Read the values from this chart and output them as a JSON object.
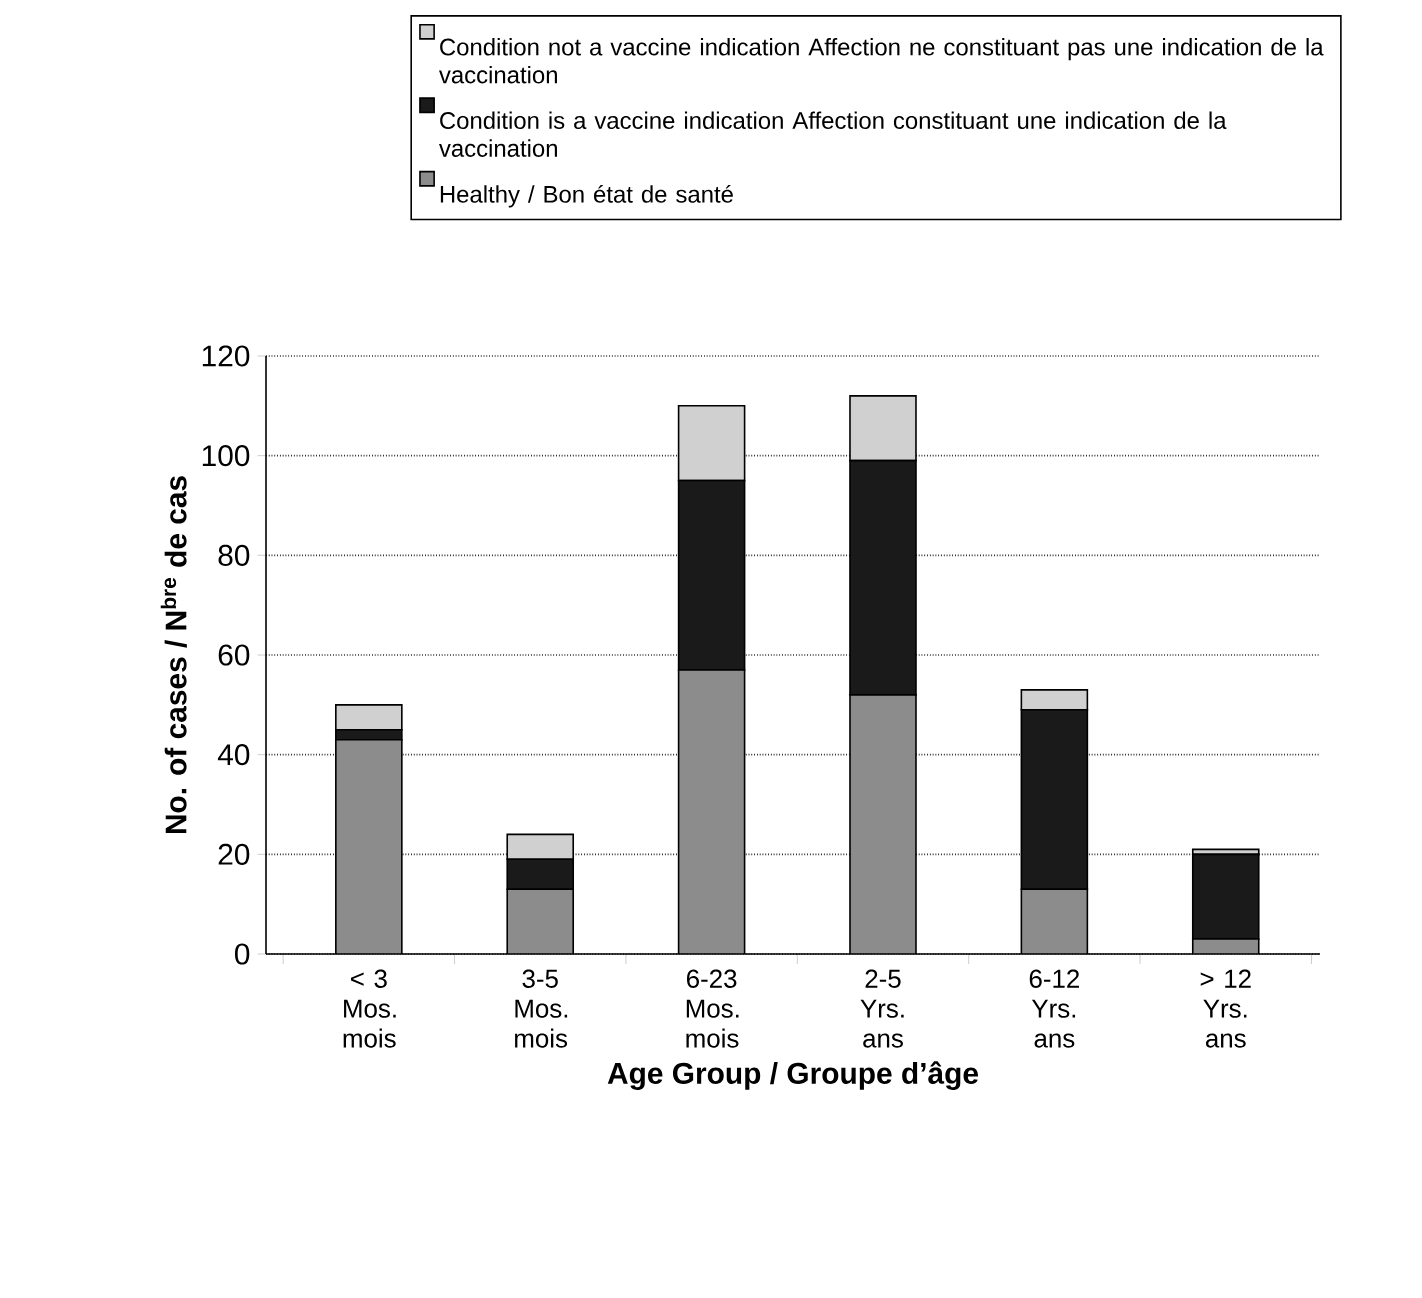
{
  "chart_data": {
    "type": "bar",
    "stacked": true,
    "categories": [
      "< 3 Mos. mois",
      "3-5 Mos. mois",
      "6-23 Mos. mois",
      "2-5 Yrs. ans",
      "6-12 Yrs. ans",
      "> 12 Yrs. ans"
    ],
    "series": [
      {
        "name": "Healthy / Bon état de santé",
        "color": "#8c8c8c",
        "values": [
          43,
          13,
          57,
          52,
          13,
          3
        ]
      },
      {
        "name": "Condition is a vaccine indication Affection constituant une indication de la vaccination",
        "color": "#1a1a1a",
        "values": [
          2,
          6,
          38,
          47,
          36,
          17
        ]
      },
      {
        "name": "Condition not a vaccine indication Affection ne constituant pas une indication de la vaccination",
        "color": "#d0d0d0",
        "values": [
          5,
          5,
          15,
          13,
          4,
          1
        ]
      }
    ],
    "xlabel": "Age Group / Groupe d’âge",
    "ylabel": "No. of cases / N$^{bre}$ de cas",
    "ylim": [
      0,
      120
    ],
    "yticks": [
      0,
      20,
      40,
      60,
      80,
      100,
      120
    ],
    "grid": "y",
    "legend": "top"
  }
}
